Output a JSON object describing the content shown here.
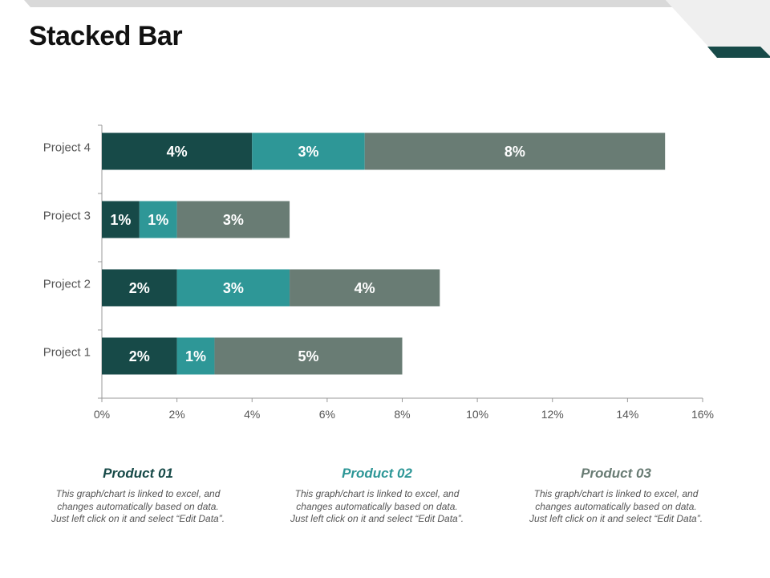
{
  "title": "Stacked Bar",
  "colors": {
    "accent_dark": "#174a48",
    "stripe_gray": "#d9d9d9",
    "stripe_light": "#efefef"
  },
  "chart_data": {
    "type": "bar",
    "orientation": "horizontal",
    "stacked": true,
    "categories": [
      "Project 1",
      "Project 2",
      "Project 3",
      "Project 4"
    ],
    "series": [
      {
        "name": "Product 01",
        "color": "#174a48",
        "values": [
          2,
          2,
          1,
          4
        ],
        "labels": [
          "2%",
          "2%",
          "1%",
          "4%"
        ]
      },
      {
        "name": "Product 02",
        "color": "#2e9797",
        "values": [
          1,
          3,
          1,
          3
        ],
        "labels": [
          "1%",
          "3%",
          "1%",
          "3%"
        ]
      },
      {
        "name": "Product 03",
        "color": "#697c74",
        "values": [
          5,
          4,
          3,
          8
        ],
        "labels": [
          "5%",
          "4%",
          "3%",
          "8%"
        ]
      }
    ],
    "xlim": [
      0,
      16
    ],
    "xticks": [
      "0%",
      "2%",
      "4%",
      "6%",
      "8%",
      "10%",
      "12%",
      "14%",
      "16%"
    ],
    "grid": false,
    "legend": "none"
  },
  "products": [
    {
      "name": "Product 01",
      "color": "#174a48",
      "text": "This graph/chart is linked to excel, and changes automatically based on data. Just left click on it and select “Edit Data”."
    },
    {
      "name": "Product 02",
      "color": "#2e9797",
      "text": "This graph/chart is linked to excel, and changes automatically based on data. Just left click on it and select “Edit Data”."
    },
    {
      "name": "Product 03",
      "color": "#697c74",
      "text": "This graph/chart is linked to excel, and changes automatically based on data. Just left click on it and select “Edit Data”."
    }
  ]
}
